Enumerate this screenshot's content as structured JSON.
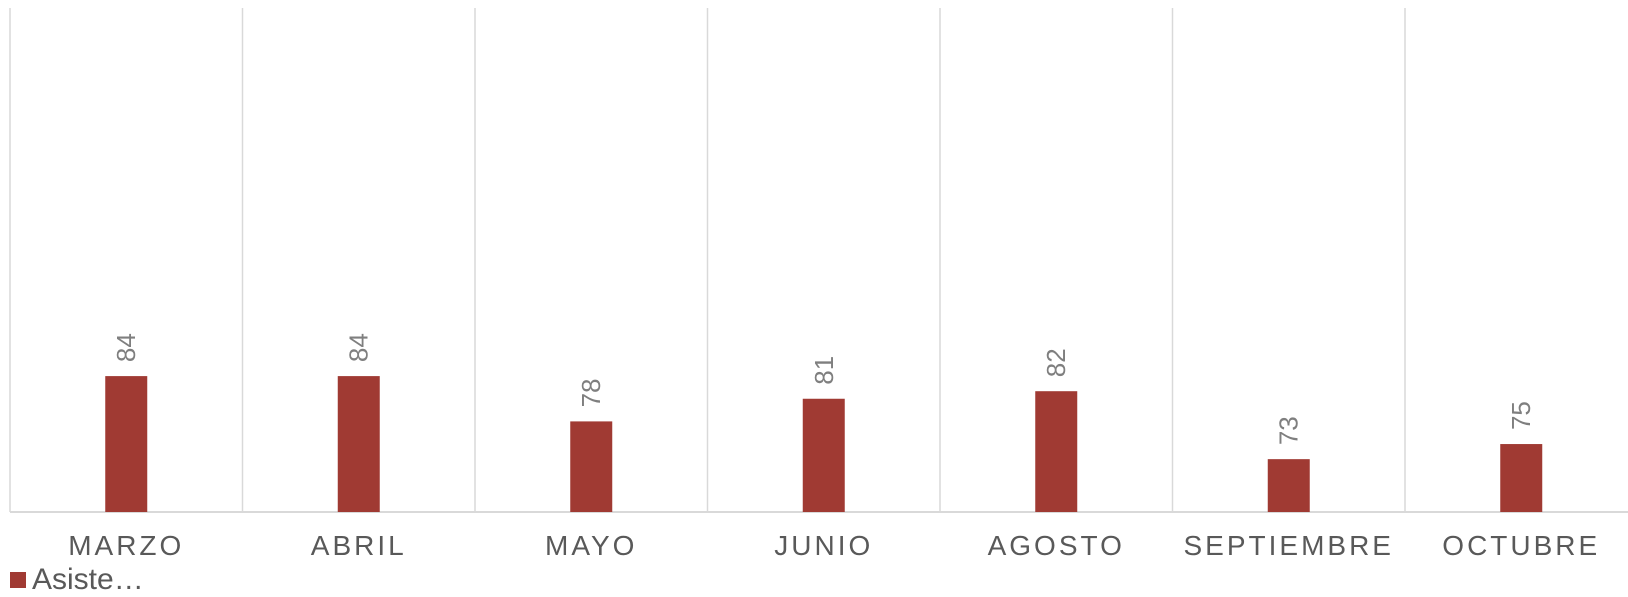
{
  "chart_data": {
    "type": "bar",
    "categories": [
      "MARZO",
      "ABRIL",
      "MAYO",
      "JUNIO",
      "AGOSTO",
      "SEPTIEMBRE",
      "OCTUBRE"
    ],
    "series": [
      {
        "name": "Asiste…",
        "values": [
          84,
          84,
          78,
          81,
          82,
          73,
          75
        ],
        "color": "#a03a33"
      }
    ],
    "data_labels": true,
    "data_label_rotation": "vertical",
    "ylim": [
      66,
      86
    ],
    "grid": "vertical category separators",
    "legend_position": "bottom-left",
    "y_axis_visible": false
  },
  "legend": {
    "label": "Asiste…",
    "color": "#a03a33"
  }
}
